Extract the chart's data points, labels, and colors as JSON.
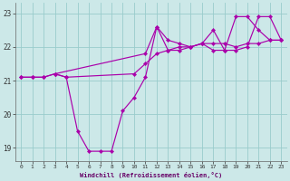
{
  "xlabel": "Windchill (Refroidissement éolien,°C)",
  "bg_color": "#cce8e8",
  "line_color": "#aa00aa",
  "grid_color": "#99cccc",
  "xlim": [
    -0.5,
    23.5
  ],
  "ylim": [
    18.6,
    23.3
  ],
  "xticks": [
    0,
    1,
    2,
    3,
    4,
    5,
    6,
    7,
    8,
    9,
    10,
    11,
    12,
    13,
    14,
    15,
    16,
    17,
    18,
    19,
    20,
    21,
    22,
    23
  ],
  "yticks": [
    19,
    20,
    21,
    22,
    23
  ],
  "line1_x": [
    0,
    1,
    2,
    3,
    4,
    5,
    6,
    7,
    8,
    9,
    10,
    11,
    12,
    13,
    14,
    15,
    16,
    17,
    18,
    19,
    20,
    21,
    22,
    23
  ],
  "line1_y": [
    21.1,
    21.1,
    21.1,
    21.2,
    21.1,
    19.5,
    18.9,
    18.9,
    18.9,
    20.1,
    20.5,
    21.1,
    22.6,
    21.9,
    21.9,
    22.0,
    22.1,
    21.9,
    21.9,
    21.9,
    22.0,
    22.9,
    22.9,
    22.2
  ],
  "line2_x": [
    0,
    1,
    2,
    3,
    4,
    10,
    11,
    12,
    13,
    14,
    15,
    16,
    17,
    18,
    19,
    20,
    21,
    22,
    23
  ],
  "line2_y": [
    21.1,
    21.1,
    21.1,
    21.2,
    21.1,
    21.2,
    21.5,
    21.8,
    21.9,
    22.0,
    22.0,
    22.1,
    22.1,
    22.1,
    22.0,
    22.1,
    22.1,
    22.2,
    22.2
  ],
  "line3_x": [
    3,
    11,
    12,
    13,
    14,
    15,
    16,
    17,
    18,
    19,
    20,
    21,
    22,
    23
  ],
  "line3_y": [
    21.2,
    21.8,
    22.6,
    22.2,
    22.1,
    22.0,
    22.1,
    22.5,
    21.9,
    22.9,
    22.9,
    22.5,
    22.2,
    22.2
  ],
  "xlabel_color": "#660066",
  "tick_color": "#333333",
  "spine_color": "#666666"
}
